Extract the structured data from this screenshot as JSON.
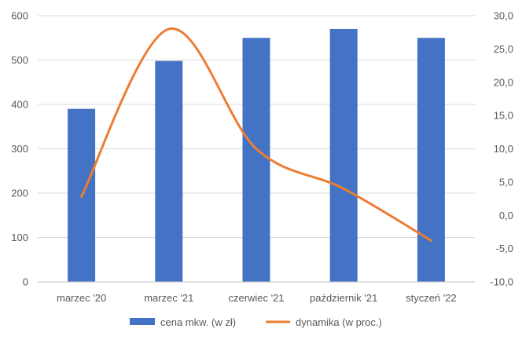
{
  "chart_data": {
    "type": "bar",
    "title": "",
    "categories": [
      "marzec '20",
      "marzec '21",
      "czerwiec '21",
      "październik '21",
      "styczeń '22"
    ],
    "series": [
      {
        "name": "cena mkw. (w zł)",
        "type": "bar",
        "axis": "left",
        "color": "#4472C4",
        "values": [
          390,
          498,
          550,
          570,
          550
        ]
      },
      {
        "name": "dynamika (w proc.)",
        "type": "line",
        "axis": "right",
        "color": "#ED7D31",
        "smooth": true,
        "values": [
          2.8,
          28.0,
          10.0,
          4.0,
          -3.8
        ]
      }
    ],
    "y_left": {
      "min": 0,
      "max": 600,
      "ticks": [
        0,
        100,
        200,
        300,
        400,
        500,
        600
      ],
      "tick_labels": [
        "0",
        "100",
        "200",
        "300",
        "400",
        "500",
        "600"
      ]
    },
    "y_right": {
      "min": -10,
      "max": 30,
      "ticks": [
        -10,
        -5,
        0,
        5,
        10,
        15,
        20,
        25,
        30
      ],
      "tick_labels": [
        "-10,0",
        "-5,0",
        "0,0",
        "5,0",
        "10,0",
        "15,0",
        "20,0",
        "25,0",
        "30,0"
      ]
    },
    "xlabel": "",
    "ylabel": "",
    "grid": "horizontal",
    "legend": "bottom",
    "colors": {
      "grid": "#D9D9D9",
      "axis": "#BFBFBF",
      "text": "#595959"
    }
  }
}
